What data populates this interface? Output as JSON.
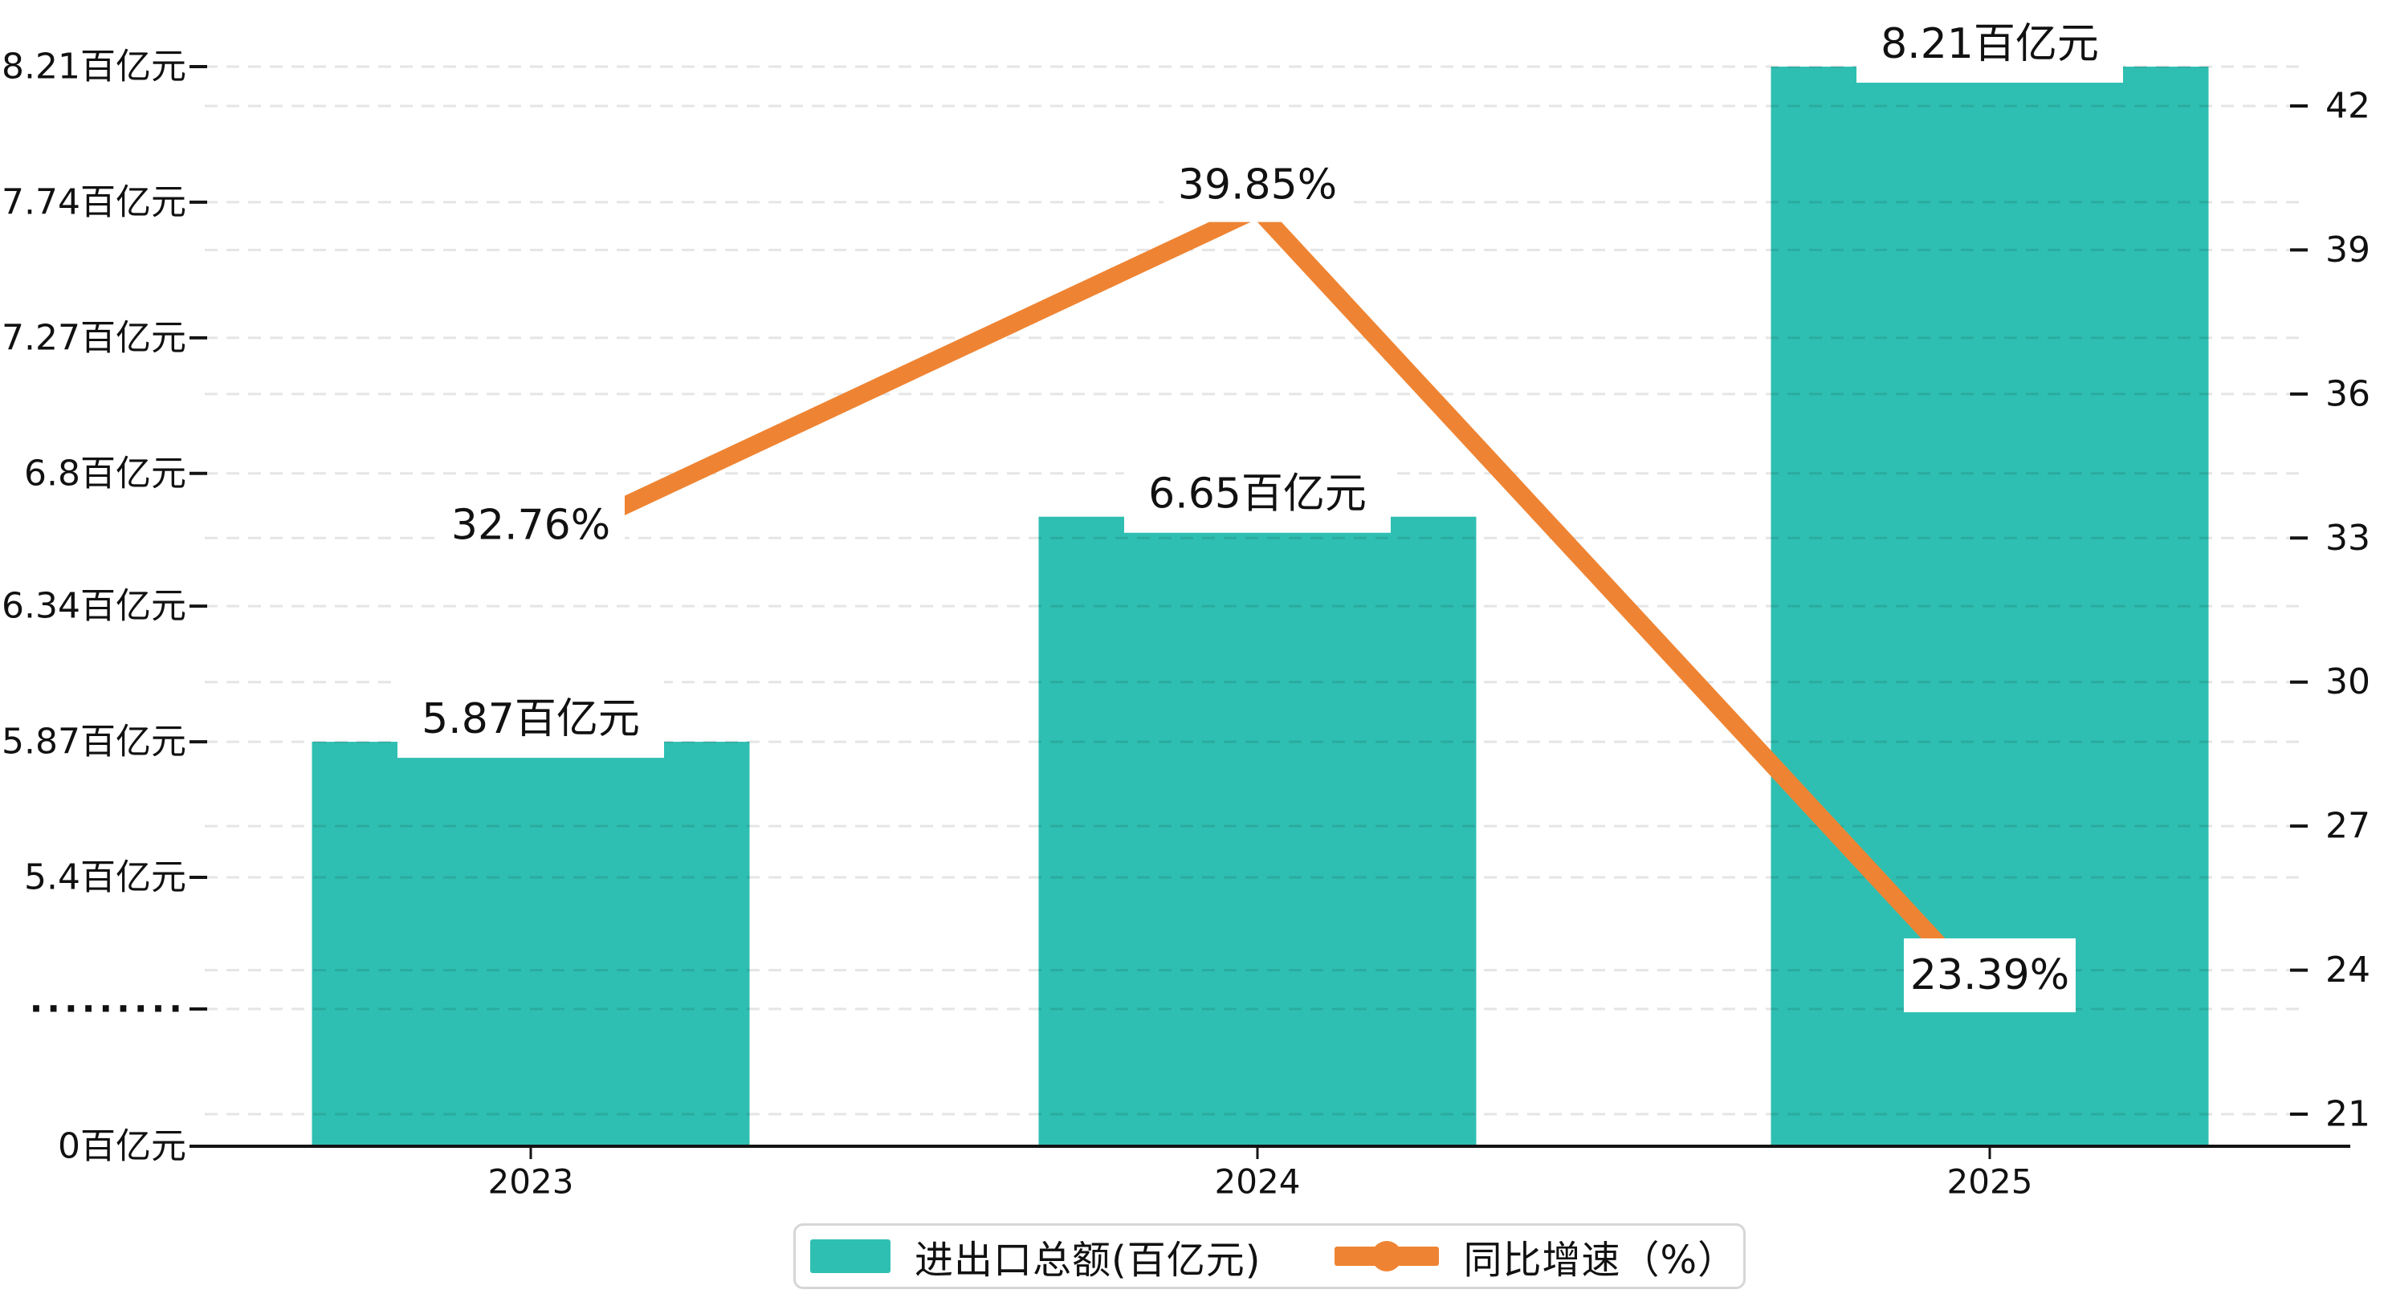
{
  "chart_data": {
    "type": "bar",
    "subtype": "dual-axis bar+line combo",
    "title": "",
    "categories": [
      "2023",
      "2024",
      "2025"
    ],
    "series": [
      {
        "name": "进出口总额(百亿元)",
        "type": "bar",
        "axis": "left",
        "values": [
          5.87,
          6.65,
          8.21
        ],
        "labels": [
          "5.87百亿元",
          "6.65百亿元",
          "8.21百亿元"
        ],
        "color": "#2fbfb2"
      },
      {
        "name": "同比增速（%）",
        "type": "line",
        "axis": "right",
        "values": [
          32.76,
          39.85,
          23.39
        ],
        "labels": [
          "32.76%",
          "39.85%",
          "23.39%"
        ],
        "color": "#ee8433"
      }
    ],
    "left_axis": {
      "broken_axis": true,
      "tick_labels": [
        "8.21百亿元",
        "7.74百亿元",
        "7.27百亿元",
        "6.8百亿元",
        "6.34百亿元",
        "5.87百亿元",
        "5.4百亿元"
      ],
      "tick_values": [
        8.21,
        7.74,
        7.27,
        6.8,
        6.34,
        5.87,
        5.4
      ],
      "break_label": "·········",
      "zero_label": "0百亿元"
    },
    "right_axis": {
      "tick_labels": [
        "42",
        "39",
        "36",
        "33",
        "30",
        "27",
        "24",
        "21"
      ],
      "tick_values": [
        42,
        39,
        36,
        33,
        30,
        27,
        24,
        21
      ]
    },
    "legend": {
      "position": "bottom",
      "items": [
        {
          "label": "进出口总额(百亿元)",
          "color": "#2fbfb2",
          "marker": "square"
        },
        {
          "label": "同比增速（%）",
          "color": "#ee8433",
          "marker": "line-circle"
        }
      ]
    },
    "grid": "dashed horizontal gridlines for both axes"
  },
  "colors": {
    "bar": "#2fbfb2",
    "line": "#ee8433",
    "text": "#111111",
    "grid": "rgba(0,0,0,0.10)",
    "axis": "#141414",
    "label_bg": "#ffffff",
    "legend_border": "#d6d6d6"
  }
}
